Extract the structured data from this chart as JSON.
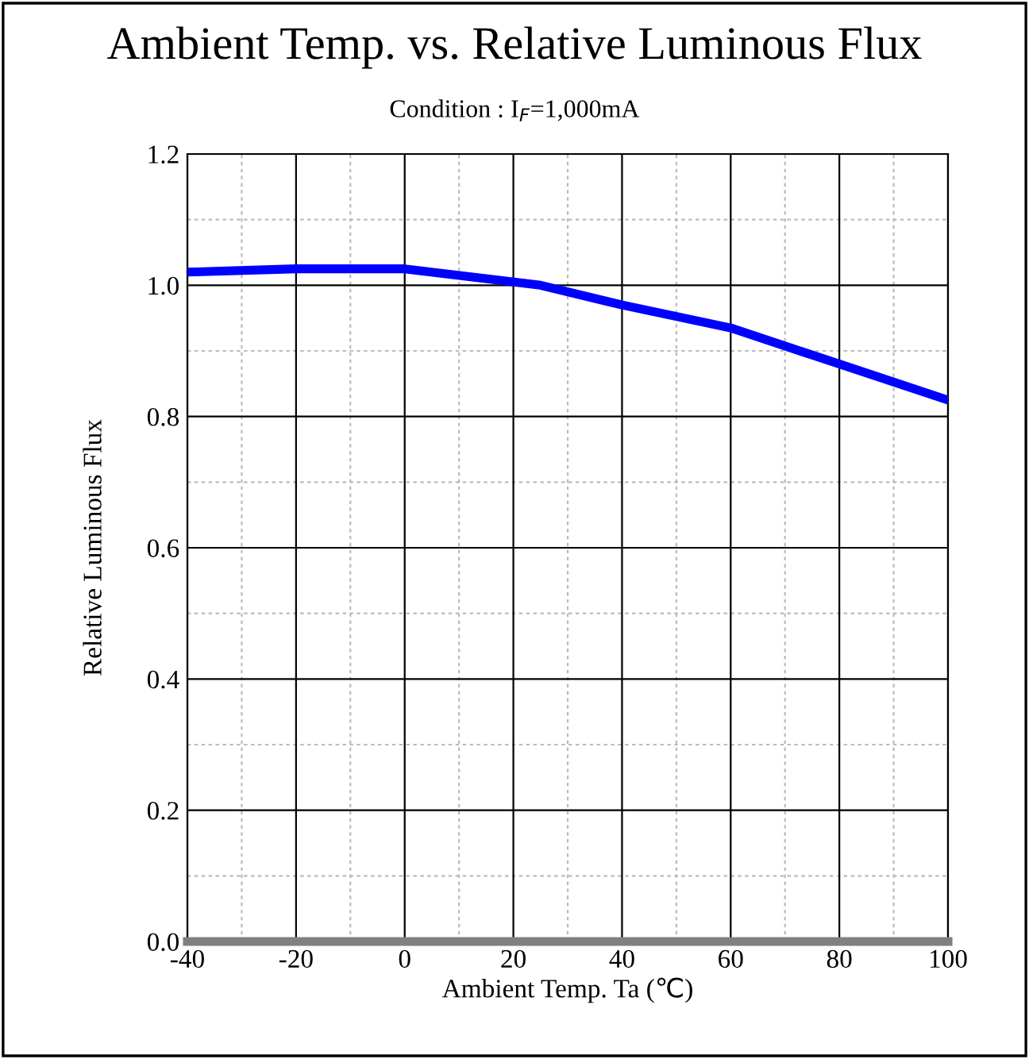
{
  "chart_data": {
    "type": "line",
    "title": "Ambient Temp. vs. Relative Luminous Flux",
    "subtitle": "Condition : I$_{F}$=1,000mA",
    "xlabel": "Ambient Temp. Ta (℃)",
    "ylabel": "Relative Luminous Flux",
    "x": [
      -40,
      -20,
      0,
      25,
      40,
      60,
      80,
      100
    ],
    "series": [
      {
        "color": "#0000ff",
        "values": [
          1.02,
          1.025,
          1.025,
          1.0,
          0.97,
          0.935,
          0.88,
          0.825
        ]
      }
    ],
    "xlim": [
      -40,
      100
    ],
    "xticks": [
      -40,
      -20,
      0,
      20,
      40,
      60,
      80,
      100
    ],
    "ylim": [
      0,
      1.2
    ],
    "yticks": [
      {
        "value": 0,
        "label": "0.0"
      },
      {
        "value": 0.2,
        "label": "0.2"
      },
      {
        "value": 0.4,
        "label": "0.4"
      },
      {
        "value": 0.6,
        "label": "0.6"
      },
      {
        "value": 0.8,
        "label": "0.8"
      },
      {
        "value": 1.0,
        "label": "1.0"
      },
      {
        "value": 1.2,
        "label": "1.2"
      }
    ],
    "grid": true,
    "legend": false,
    "marker": "none",
    "line_style": "solid"
  }
}
